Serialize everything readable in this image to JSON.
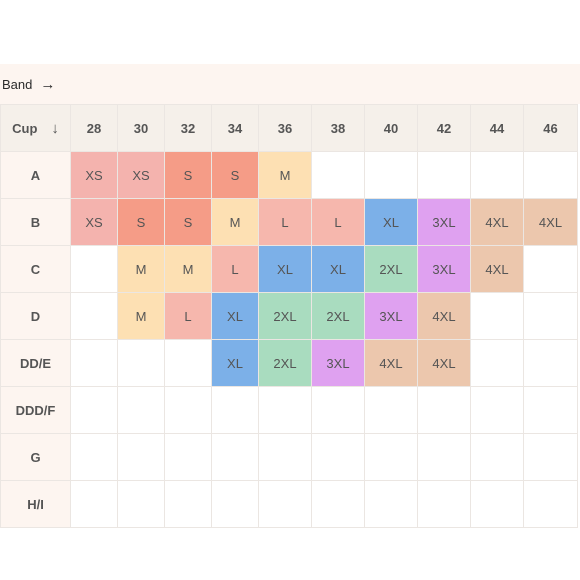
{
  "band_label": "Band",
  "band_arrow": "→",
  "cup_label": "Cup",
  "cup_arrow": "↓",
  "bands": [
    "28",
    "30",
    "32",
    "34",
    "36",
    "38",
    "40",
    "42",
    "44",
    "46"
  ],
  "cups": [
    "A",
    "B",
    "C",
    "D",
    "DD/E",
    "DDD/F",
    "G",
    "H/I"
  ],
  "size_colors": {
    "XS": "#f4b3ae",
    "S": "#f59c87",
    "M": "#fde0b3",
    "L": "#f6b7ad",
    "XL": "#7cb0e8",
    "2XL": "#a9dcbf",
    "3XL": "#dfa1f0",
    "4XL": "#ecc7ad"
  },
  "grid": [
    [
      "XS",
      "XS",
      "S",
      "S",
      "M",
      "",
      "",
      "",
      "",
      ""
    ],
    [
      "XS",
      "S",
      "S",
      "M",
      "L",
      "L",
      "XL",
      "3XL",
      "4XL",
      "4XL"
    ],
    [
      "",
      "M",
      "M",
      "L",
      "XL",
      "XL",
      "2XL",
      "3XL",
      "4XL",
      ""
    ],
    [
      "",
      "M",
      "L",
      "XL",
      "2XL",
      "2XL",
      "3XL",
      "4XL",
      "",
      ""
    ],
    [
      "",
      "",
      "",
      "XL",
      "2XL",
      "3XL",
      "4XL",
      "4XL",
      "",
      ""
    ],
    [
      "",
      "",
      "",
      "",
      "",
      "",
      "",
      "",
      "",
      ""
    ],
    [
      "",
      "",
      "",
      "",
      "",
      "",
      "",
      "",
      "",
      ""
    ],
    [
      "",
      "",
      "",
      "",
      "",
      "",
      "",
      "",
      "",
      ""
    ]
  ]
}
